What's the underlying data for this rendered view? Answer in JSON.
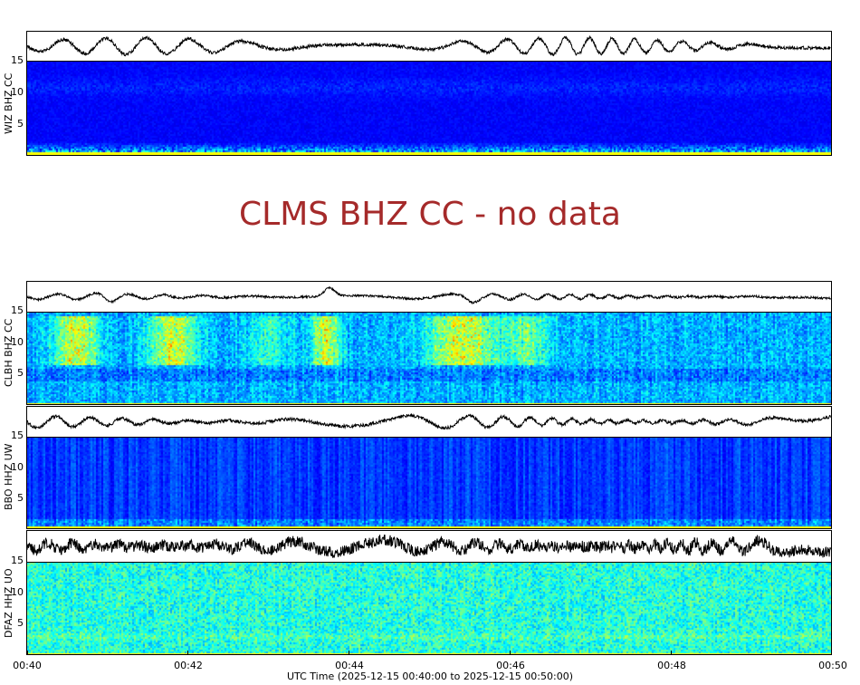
{
  "chart_data": {
    "type": "heatmap",
    "xlabel": "UTC Time (2025-12-15 00:40:00 to 2025-12-15 00:50:00)",
    "x_ticks": [
      "00:40",
      "00:42",
      "00:44",
      "00:46",
      "00:48",
      "00:50"
    ],
    "xlim": [
      "00:40",
      "00:50"
    ],
    "ylim": [
      0,
      15
    ],
    "y_ticks": [
      "15",
      "10",
      "5"
    ],
    "colormap": "jet",
    "panels": [
      {
        "station": "WIZ BHZ CC",
        "has_data": true
      },
      {
        "station": "CLMS BHZ CC",
        "has_data": false,
        "message": "CLMS BHZ CC - no data"
      },
      {
        "station": "CLBH BHZ CC",
        "has_data": true
      },
      {
        "station": "BBO HHZ UW",
        "has_data": true
      },
      {
        "station": "DFAZ HHZ UO",
        "has_data": true
      }
    ]
  },
  "colors": {
    "nodata_text": "#a52a2a",
    "trace": "#000000"
  }
}
